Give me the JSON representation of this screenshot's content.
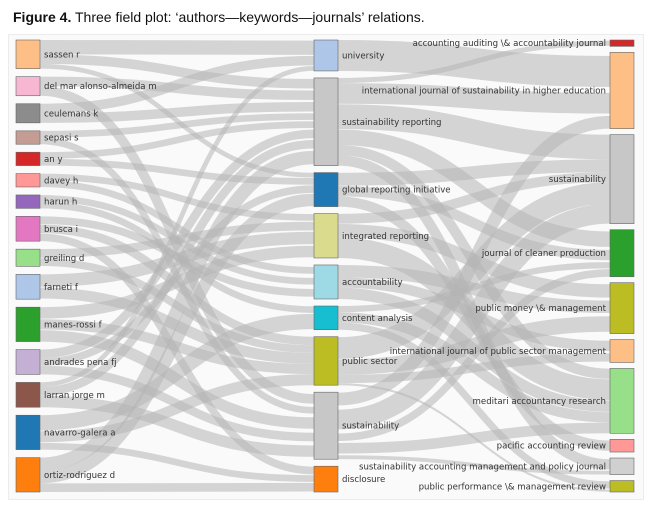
{
  "caption": {
    "figure_label": "Figure 4.",
    "text": " Three field plot: ‘authors—keywords—journals’ relations."
  },
  "authors": [
    {
      "name": "sassen r",
      "color": "#fdbf85",
      "weight": 3
    },
    {
      "name": "del mar alonso-almeida m",
      "color": "#f7b6d2",
      "weight": 2
    },
    {
      "name": "ceulemans k",
      "color": "#8c8c8c",
      "weight": 2
    },
    {
      "name": "sepasi s",
      "color": "#c49c94",
      "weight": 1.4
    },
    {
      "name": "an y",
      "color": "#d62728",
      "weight": 1.4
    },
    {
      "name": "davey h",
      "color": "#ff9896",
      "weight": 1.4
    },
    {
      "name": "harun h",
      "color": "#9467bd",
      "weight": 1.4
    },
    {
      "name": "brusca i",
      "color": "#e377c2",
      "weight": 2.6
    },
    {
      "name": "greiling d",
      "color": "#98df8a",
      "weight": 1.8
    },
    {
      "name": "farneti f",
      "color": "#aec7e8",
      "weight": 2.6
    },
    {
      "name": "manes-rossi f",
      "color": "#2ca02c",
      "weight": 3.6
    },
    {
      "name": "andrades pena fj",
      "color": "#c5b0d5",
      "weight": 2.6
    },
    {
      "name": "larran jorge m",
      "color": "#8c564b",
      "weight": 2.6
    },
    {
      "name": "navarro-galera a",
      "color": "#1f77b4",
      "weight": 3.6
    },
    {
      "name": "ortiz-rodriguez d",
      "color": "#ff7f0e",
      "weight": 3.6
    }
  ],
  "keywords": [
    {
      "name": "university",
      "color": "#aec7e8",
      "weight": 3
    },
    {
      "name": "sustainability reporting",
      "color": "#c7c7c7",
      "weight": 8.5
    },
    {
      "name": "global reporting initiative",
      "color": "#1f77b4",
      "weight": 3.3
    },
    {
      "name": "integrated reporting",
      "color": "#dbdb8d",
      "weight": 4.3
    },
    {
      "name": "accountability",
      "color": "#9edae5",
      "weight": 3.3
    },
    {
      "name": "content analysis",
      "color": "#17becf",
      "weight": 2.3
    },
    {
      "name": "public sector",
      "color": "#bcbd22",
      "weight": 4.7
    },
    {
      "name": "sustainability",
      "color": "#c7c7c7",
      "weight": 6.5
    },
    {
      "name": "disclosure",
      "color": "#ff7f0e",
      "weight": 2.5
    }
  ],
  "journals": [
    {
      "name": "accounting auditing \\& accountability journal",
      "color": "#d62728",
      "weight": 0.5
    },
    {
      "name": "international journal of sustainability in higher education",
      "color": "#fdbf85",
      "weight": 6
    },
    {
      "name": "sustainability",
      "color": "#c7c7c7",
      "weight": 7
    },
    {
      "name": "journal of cleaner production",
      "color": "#2ca02c",
      "weight": 3.7
    },
    {
      "name": "public money \\& management",
      "color": "#bcbd22",
      "weight": 4
    },
    {
      "name": "international journal of public sector management",
      "color": "#fdbf85",
      "weight": 1.8
    },
    {
      "name": "meditari accountancy research",
      "color": "#98df8a",
      "weight": 5.1
    },
    {
      "name": "pacific accounting review",
      "color": "#ff9896",
      "weight": 1
    },
    {
      "name": "sustainability accounting management and policy journal",
      "color": "#d0d0d0",
      "weight": 1.3
    },
    {
      "name": "public performance \\& management review",
      "color": "#bcbd22",
      "weight": 0.9
    }
  ],
  "author_keyword_links": [
    [
      0,
      0,
      1.5
    ],
    [
      0,
      1,
      1
    ],
    [
      0,
      2,
      0.5
    ],
    [
      1,
      1,
      1
    ],
    [
      1,
      7,
      1
    ],
    [
      2,
      0,
      1
    ],
    [
      2,
      1,
      1
    ],
    [
      3,
      1,
      0.7
    ],
    [
      3,
      7,
      0.7
    ],
    [
      4,
      1,
      0.7
    ],
    [
      4,
      2,
      0.7
    ],
    [
      5,
      3,
      0.7
    ],
    [
      5,
      4,
      0.7
    ],
    [
      6,
      4,
      0.7
    ],
    [
      6,
      5,
      0.7
    ],
    [
      7,
      6,
      1
    ],
    [
      7,
      4,
      0.8
    ],
    [
      7,
      8,
      0.8
    ],
    [
      8,
      3,
      0.9
    ],
    [
      8,
      6,
      0.9
    ],
    [
      9,
      3,
      1.3
    ],
    [
      9,
      6,
      1.3
    ],
    [
      10,
      6,
      1.2
    ],
    [
      10,
      7,
      1.2
    ],
    [
      10,
      3,
      1.2
    ],
    [
      11,
      1,
      0.9
    ],
    [
      11,
      7,
      0.9
    ],
    [
      11,
      2,
      0.8
    ],
    [
      12,
      1,
      0.9
    ],
    [
      12,
      0,
      0.5
    ],
    [
      12,
      7,
      1.2
    ],
    [
      13,
      5,
      1.6
    ],
    [
      13,
      6,
      1.3
    ],
    [
      13,
      8,
      0.7
    ],
    [
      14,
      1,
      1.4
    ],
    [
      14,
      2,
      1.3
    ],
    [
      14,
      8,
      0.9
    ]
  ],
  "keyword_journal_links": [
    [
      0,
      1,
      3
    ],
    [
      1,
      0,
      0.5
    ],
    [
      1,
      1,
      2
    ],
    [
      1,
      2,
      2.5
    ],
    [
      1,
      3,
      1.5
    ],
    [
      1,
      6,
      1
    ],
    [
      1,
      8,
      1
    ],
    [
      2,
      2,
      1.3
    ],
    [
      2,
      3,
      1
    ],
    [
      2,
      7,
      1
    ],
    [
      3,
      4,
      1.3
    ],
    [
      3,
      6,
      2
    ],
    [
      3,
      2,
      1
    ],
    [
      4,
      4,
      1.2
    ],
    [
      4,
      5,
      1
    ],
    [
      4,
      6,
      1.1
    ],
    [
      5,
      6,
      1
    ],
    [
      5,
      3,
      0.6
    ],
    [
      5,
      9,
      0.7
    ],
    [
      6,
      4,
      1.5
    ],
    [
      6,
      5,
      0.8
    ],
    [
      6,
      9,
      0.2
    ],
    [
      6,
      2,
      2.2
    ],
    [
      7,
      2,
      2
    ],
    [
      7,
      1,
      1
    ],
    [
      7,
      3,
      0.6
    ],
    [
      7,
      6,
      1
    ],
    [
      7,
      8,
      0.3
    ],
    [
      7,
      4,
      0
    ],
    [
      8,
      2,
      0
    ],
    [
      8,
      6,
      0
    ],
    [
      8,
      8,
      0
    ]
  ]
}
